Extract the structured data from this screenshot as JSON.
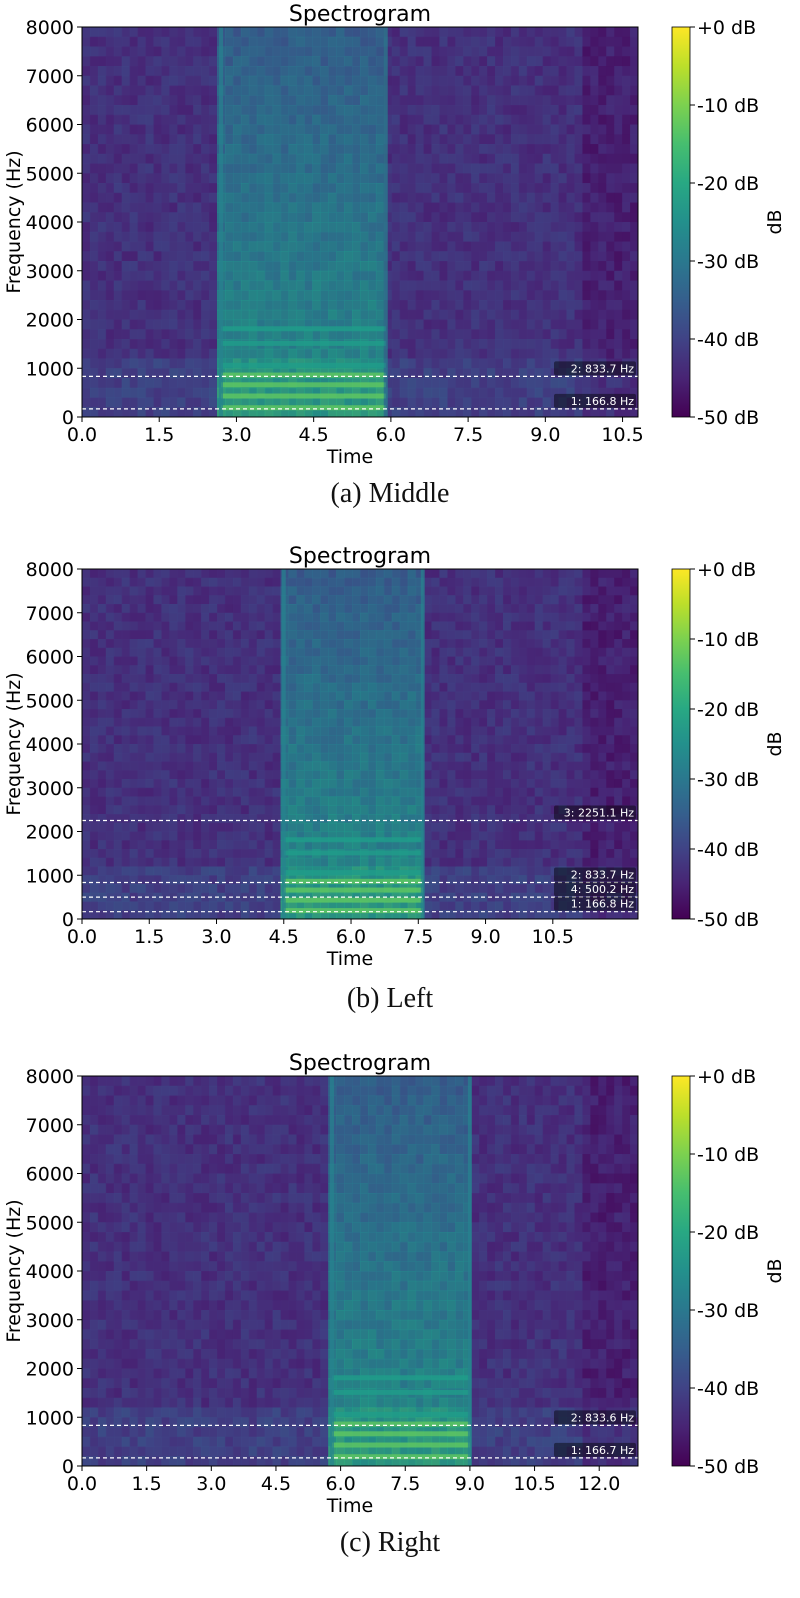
{
  "chart_data": [
    {
      "type": "heatmap",
      "caption": "(a)  Middle",
      "title": "Spectrogram",
      "xlabel": "Time",
      "ylabel": "Frequency (Hz)",
      "xlim": [
        0,
        10.8
      ],
      "ylim": [
        0,
        8000
      ],
      "x_ticks": [
        "0.0",
        "1.5",
        "3.0",
        "4.5",
        "6.0",
        "7.5",
        "9.0",
        "10.5"
      ],
      "y_ticks": [
        "0",
        "1000",
        "2000",
        "3000",
        "4000",
        "5000",
        "6000",
        "7000",
        "8000"
      ],
      "colorbar": {
        "label": "dB",
        "ticks": [
          "+0 dB",
          "-10 dB",
          "-20 dB",
          "-30 dB",
          "-40 dB",
          "-50 dB"
        ],
        "range": [
          -50,
          0
        ]
      },
      "active_segments": [
        {
          "start": 2.7,
          "end": 5.9
        }
      ],
      "markers": [
        {
          "label": "2: 833.7 Hz",
          "freq": 833.7
        },
        {
          "label": "1: 166.8 Hz",
          "freq": 166.8
        }
      ]
    },
    {
      "type": "heatmap",
      "caption": "(b)  Left",
      "title": "Spectrogram",
      "xlabel": "Time",
      "ylabel": "Frequency (Hz)",
      "xlim": [
        0,
        12.4
      ],
      "ylim": [
        0,
        8000
      ],
      "x_ticks": [
        "0.0",
        "1.5",
        "3.0",
        "4.5",
        "6.0",
        "7.5",
        "9.0",
        "10.5"
      ],
      "y_ticks": [
        "0",
        "1000",
        "2000",
        "3000",
        "4000",
        "5000",
        "6000",
        "7000",
        "8000"
      ],
      "colorbar": {
        "label": "dB",
        "ticks": [
          "+0 dB",
          "-10 dB",
          "-20 dB",
          "-30 dB",
          "-40 dB",
          "-50 dB"
        ],
        "range": [
          -50,
          0
        ]
      },
      "active_segments": [
        {
          "start": 4.5,
          "end": 7.6
        }
      ],
      "markers": [
        {
          "label": "3: 2251.1 Hz",
          "freq": 2251.1
        },
        {
          "label": "2: 833.7 Hz",
          "freq": 833.7
        },
        {
          "label": "4: 500.2 Hz",
          "freq": 500.2
        },
        {
          "label": "1: 166.8 Hz",
          "freq": 166.8
        }
      ]
    },
    {
      "type": "heatmap",
      "caption": "(c)  Right",
      "title": "Spectrogram",
      "xlabel": "Time",
      "ylabel": "Frequency (Hz)",
      "xlim": [
        0,
        12.9
      ],
      "ylim": [
        0,
        8000
      ],
      "x_ticks": [
        "0.0",
        "1.5",
        "3.0",
        "4.5",
        "6.0",
        "7.5",
        "9.0",
        "10.5",
        "12.0"
      ],
      "y_ticks": [
        "0",
        "1000",
        "2000",
        "3000",
        "4000",
        "5000",
        "6000",
        "7000",
        "8000"
      ],
      "colorbar": {
        "label": "dB",
        "ticks": [
          "+0 dB",
          "-10 dB",
          "-20 dB",
          "-30 dB",
          "-40 dB",
          "-50 dB"
        ],
        "range": [
          -50,
          0
        ]
      },
      "active_segments": [
        {
          "start": 5.8,
          "end": 9.0
        }
      ],
      "markers": [
        {
          "label": "2: 833.6 Hz",
          "freq": 833.6
        },
        {
          "label": "1: 166.7 Hz",
          "freq": 166.7
        }
      ]
    }
  ]
}
